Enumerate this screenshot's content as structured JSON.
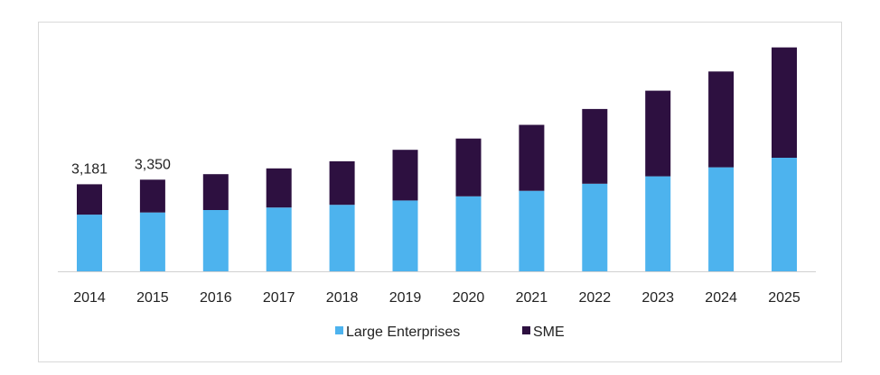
{
  "chart_data": {
    "type": "bar",
    "stacked": true,
    "categories": [
      "2014",
      "2015",
      "2016",
      "2017",
      "2018",
      "2019",
      "2020",
      "2021",
      "2022",
      "2023",
      "2024",
      "2025"
    ],
    "series": [
      {
        "name": "Large Enterprises",
        "color": "#4db3ee",
        "values": [
          2070,
          2150,
          2240,
          2330,
          2430,
          2590,
          2740,
          2940,
          3200,
          3470,
          3800,
          4150
        ]
      },
      {
        "name": "SME",
        "color": "#2d1040",
        "values": [
          1111,
          1200,
          1310,
          1430,
          1590,
          1850,
          2110,
          2410,
          2730,
          3130,
          3500,
          4030
        ]
      }
    ],
    "data_labels": [
      {
        "category": "2014",
        "text": "3,181"
      },
      {
        "category": "2015",
        "text": "3,350"
      }
    ],
    "ylim": [
      0,
      8200
    ],
    "grid": false,
    "legend_position": "bottom",
    "title": "",
    "xlabel": "",
    "ylabel": ""
  }
}
